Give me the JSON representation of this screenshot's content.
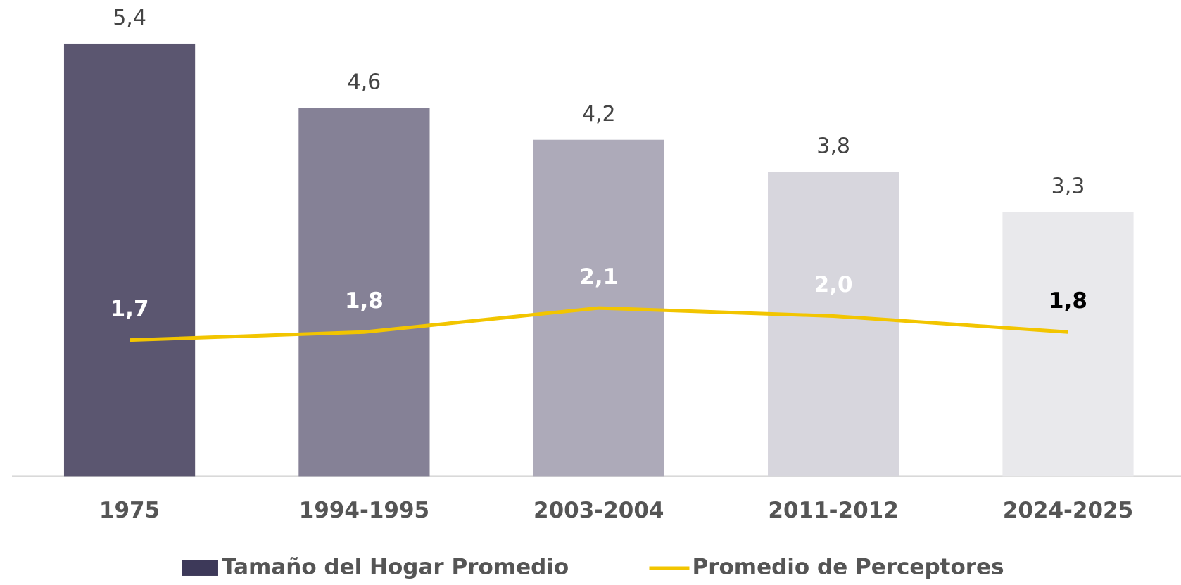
{
  "chart_data": {
    "type": "bar",
    "categories": [
      "1975",
      "1994-1995",
      "2003-2004",
      "2011-2012",
      "2024-2025"
    ],
    "series": [
      {
        "name": "Tamaño del Hogar Promedio",
        "type": "bar",
        "color": "#3d3959",
        "colors": [
          "#5b5670",
          "#858196",
          "#adaab9",
          "#d7d6dd",
          "#e9e9ec"
        ],
        "values": [
          5.4,
          4.6,
          4.2,
          3.8,
          3.3
        ],
        "value_labels": [
          "5,4",
          "4,6",
          "4,2",
          "3,8",
          "3,3"
        ],
        "label_color": "#444444"
      },
      {
        "name": "Promedio de Perceptores",
        "type": "line",
        "color": "#f2c500",
        "values": [
          1.7,
          1.8,
          2.1,
          2.0,
          1.8
        ],
        "value_labels": [
          "1,7",
          "1,8",
          "2,1",
          "2,0",
          "1,8"
        ],
        "label_colors": [
          "#ffffff",
          "#ffffff",
          "#ffffff",
          "#ffffff",
          "#000000"
        ]
      }
    ],
    "legend": "bottom"
  }
}
